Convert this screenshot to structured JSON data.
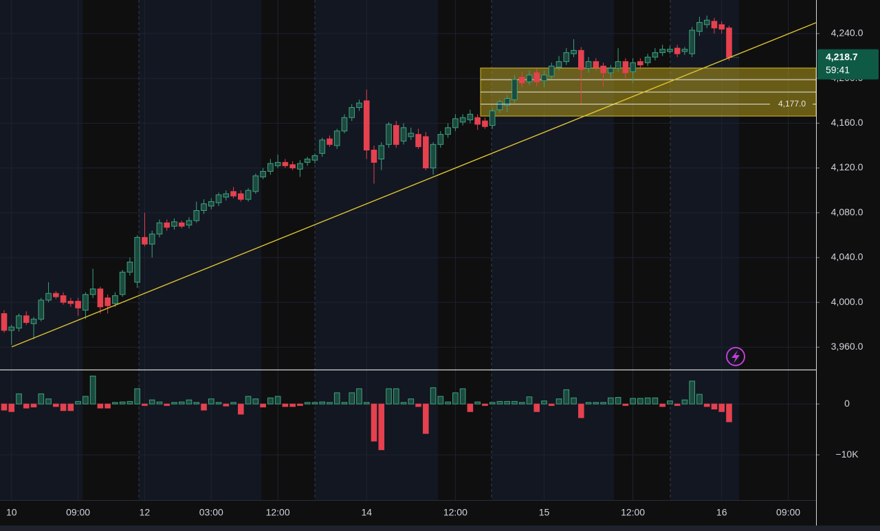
{
  "chart_data": [
    {
      "type": "candlestick",
      "categories": [
        null,
        "10",
        null,
        null,
        null,
        null,
        null,
        null,
        null,
        null,
        "09:00",
        null,
        null,
        null,
        null,
        null,
        null,
        null,
        null,
        "12",
        null,
        null,
        null,
        null,
        null,
        null,
        null,
        null,
        "03:00",
        null,
        null,
        null,
        null,
        null,
        null,
        null,
        null,
        "12:00",
        null,
        null,
        null,
        null,
        null,
        null,
        null,
        null,
        null,
        null,
        null,
        "14",
        null,
        null,
        null,
        null,
        null,
        null,
        null,
        null,
        null,
        null,
        null,
        "12:00",
        null,
        null,
        null,
        null,
        null,
        null,
        null,
        null,
        null,
        null,
        null,
        "15",
        null,
        null,
        null,
        null,
        null,
        null,
        null,
        null,
        null,
        null,
        null,
        "12:00",
        null,
        null,
        null,
        null,
        null,
        null,
        null,
        null,
        null,
        null,
        null,
        "16",
        null,
        null,
        null,
        null,
        null,
        null,
        null,
        null,
        "09:00",
        null,
        null,
        null
      ],
      "open": [
        3990,
        3975,
        3977,
        3988,
        3981,
        3985,
        4002,
        4008,
        4006,
        4001,
        4001,
        3993,
        4007,
        4012,
        4004,
        3999,
        4007,
        4027,
        4018,
        4058,
        4052,
        4061,
        4071,
        4068,
        4071,
        4069,
        4073,
        4082,
        4086,
        4089,
        4094,
        4099,
        4097,
        4092,
        4099,
        4112,
        4117,
        4122,
        4125,
        4123,
        4119,
        4125,
        4127,
        4133,
        4146,
        4140,
        4153,
        4165,
        4174,
        4180,
        4136,
        4128,
        4141,
        4158,
        4144,
        4148,
        4150,
        4148,
        4120,
        4141,
        4150,
        4156,
        4161,
        4163,
        4165,
        4162,
        4158,
        4172,
        4176,
        4181,
        4201,
        4197,
        4205,
        4198,
        4202,
        4210,
        4215,
        4222,
        4225,
        4209,
        4215,
        4211,
        4205,
        4209,
        4215,
        4206,
        4215,
        4214,
        4219,
        4223,
        4224,
        4227,
        4224,
        4222,
        4242,
        4248,
        4251,
        4248,
        4245,
        null,
        null,
        null,
        null,
        null,
        null,
        null,
        null,
        null,
        null,
        null
      ],
      "high": [
        3993,
        3980,
        3990,
        3992,
        3987,
        4004,
        4018,
        4010,
        4009,
        4004,
        4004,
        4009,
        4030,
        4014,
        4007,
        4009,
        4029,
        4040,
        4060,
        4080,
        4064,
        4074,
        4074,
        4075,
        4073,
        4076,
        4090,
        4092,
        4093,
        4098,
        4100,
        4103,
        4100,
        4102,
        4115,
        4120,
        4128,
        4132,
        4128,
        4126,
        4127,
        4130,
        4133,
        4147,
        4149,
        4155,
        4168,
        4177,
        4181,
        4190,
        4140,
        4143,
        4161,
        4162,
        4160,
        4156,
        4155,
        4152,
        4143,
        4153,
        4160,
        4168,
        4168,
        4172,
        4168,
        4165,
        4174,
        4181,
        4185,
        4203,
        4206,
        4207,
        4209,
        4207,
        4214,
        4220,
        4227,
        4235,
        4228,
        4219,
        4218,
        4214,
        4212,
        4227,
        4218,
        4218,
        4218,
        4222,
        4227,
        4230,
        4229,
        4230,
        4228,
        4246,
        4255,
        4256,
        4254,
        4251,
        4247,
        null,
        null,
        null,
        null,
        null,
        null,
        null,
        null,
        null,
        null,
        null
      ],
      "low": [
        3973,
        3962,
        3974,
        3980,
        3967,
        3983,
        4000,
        4003,
        3998,
        3996,
        3988,
        3985,
        4004,
        3990,
        3990,
        3996,
        4005,
        4024,
        4013,
        4050,
        4040,
        4058,
        4064,
        4065,
        4066,
        4066,
        4071,
        4079,
        4083,
        4086,
        4091,
        4093,
        4090,
        4090,
        4097,
        4110,
        4114,
        4120,
        4120,
        4118,
        4112,
        4122,
        4124,
        4130,
        4139,
        4137,
        4151,
        4162,
        4171,
        4128,
        4106,
        4118,
        4138,
        4138,
        4141,
        4145,
        4137,
        4118,
        4114,
        4138,
        4147,
        4153,
        4158,
        4160,
        4154,
        4155,
        4155,
        4169,
        4170,
        4178,
        4192,
        4194,
        4193,
        4192,
        4199,
        4207,
        4212,
        4219,
        4177,
        4205,
        4207,
        4193,
        4200,
        4206,
        4200,
        4196,
        4208,
        4211,
        4216,
        4220,
        4222,
        4219,
        4221,
        4219,
        4238,
        4245,
        4240,
        4240,
        4216,
        null,
        null,
        null,
        null,
        null,
        null,
        null,
        null,
        null,
        null,
        null
      ],
      "close": [
        3975,
        3978,
        3988,
        3982,
        3985,
        4002,
        4008,
        4005,
        4000,
        3999,
        3995,
        4007,
        4012,
        3996,
        3997,
        4006,
        4027,
        4036,
        4058,
        4052,
        4061,
        4071,
        4067,
        4072,
        4068,
        4073,
        4082,
        4088,
        4090,
        4096,
        4097,
        4095,
        4092,
        4100,
        4113,
        4117,
        4124,
        4125,
        4122,
        4120,
        4124,
        4128,
        4131,
        4145,
        4141,
        4153,
        4165,
        4174,
        4178,
        4136,
        4125,
        4140,
        4159,
        4141,
        4156,
        4151,
        4139,
        4120,
        4141,
        4150,
        4156,
        4164,
        4165,
        4168,
        4159,
        4157,
        4171,
        4179,
        4182,
        4199,
        4196,
        4203,
        4197,
        4203,
        4211,
        4215,
        4223,
        4225,
        4208,
        4215,
        4210,
        4205,
        4209,
        4215,
        4205,
        4214,
        4212,
        4219,
        4223,
        4226,
        4226,
        4222,
        4226,
        4243,
        4250,
        4252,
        4245,
        4244,
        4218.7,
        null,
        null,
        null,
        null,
        null,
        null,
        null,
        null,
        null,
        null,
        null
      ],
      "up_color": "#3fa37f",
      "down_color": "#e5414f",
      "ylim": [
        3940,
        4270
      ],
      "yticks": [
        {
          "value": 3960,
          "label": "3,960.0"
        },
        {
          "value": 4000,
          "label": "4,000.0"
        },
        {
          "value": 4040,
          "label": "4,040.0"
        },
        {
          "value": 4080,
          "label": "4,080.0"
        },
        {
          "value": 4120,
          "label": "4,120.0"
        },
        {
          "value": 4160,
          "label": "4,160.0"
        },
        {
          "value": 4200,
          "label": "4,200.0"
        },
        {
          "value": 4240,
          "label": "4,240.0"
        }
      ],
      "grid": true,
      "annotation": {
        "value": 4177,
        "label": "4,177.0"
      },
      "last_price": {
        "value": 4218.7,
        "label": "4,218.7"
      },
      "countdown": "59:41"
    },
    {
      "type": "bar",
      "values": [
        -1200,
        -1500,
        2000,
        -800,
        -600,
        2000,
        1000,
        -500,
        -1300,
        -1300,
        500,
        1500,
        5500,
        -800,
        -800,
        300,
        400,
        500,
        3000,
        -300,
        800,
        400,
        -300,
        300,
        400,
        800,
        300,
        -1200,
        1000,
        300,
        -400,
        300,
        -2000,
        1500,
        1000,
        -600,
        1200,
        1500,
        -500,
        -500,
        -300,
        300,
        300,
        400,
        300,
        2200,
        300,
        2200,
        3000,
        300,
        -7300,
        -9000,
        3000,
        3000,
        300,
        1000,
        -500,
        -5800,
        3200,
        1500,
        400,
        2200,
        3000,
        -1500,
        400,
        -300,
        300,
        500,
        500,
        500,
        300,
        1400,
        -1500,
        600,
        -300,
        1000,
        2800,
        1200,
        -2700,
        300,
        300,
        300,
        1200,
        1300,
        -300,
        1100,
        1100,
        1200,
        1200,
        -500,
        600,
        -300,
        800,
        4500,
        1900,
        -500,
        -1000,
        -1500,
        -3500,
        null,
        null,
        null,
        null,
        null,
        null,
        null,
        null,
        null,
        null,
        null
      ],
      "up_color": "#3fa37f",
      "down_color": "#e5414f",
      "ylim": [
        -18900,
        6500
      ],
      "yticks": [
        0,
        {
          "value": -10000,
          "label": "−10K"
        }
      ],
      "grid": true
    }
  ]
}
